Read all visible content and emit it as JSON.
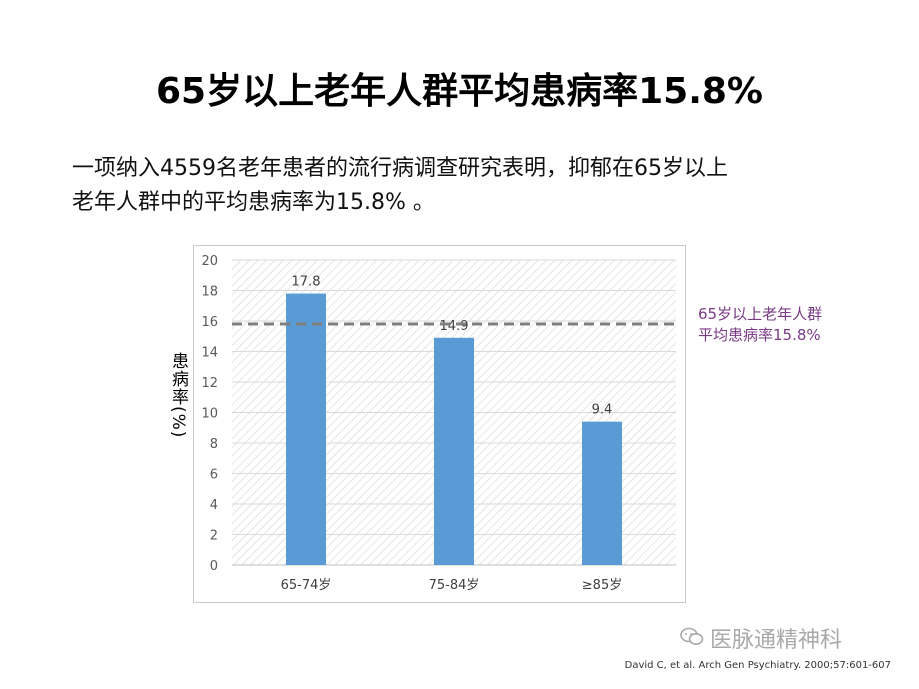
{
  "slide": {
    "title": "65岁以上老年人群平均患病率15.8%",
    "body_line1": "一项纳入4559名老年患者的流行病调查研究表明，抑郁在65岁以上",
    "body_line2": "老年人群中的平均患病率为15.8% 。",
    "avg_note_line1": "65岁以上老年人群",
    "avg_note_line2": "平均患病率15.8%",
    "watermark": "医脉通精神科",
    "citation": "David C, et al. Arch Gen Psychiatry. 2000;57:601-607"
  },
  "colors": {
    "bar": "#5b9bd5",
    "avg_line": "#7f7f7f",
    "note_text": "#7a3a86",
    "plot_hatch": "#dcdcdc"
  },
  "icons": {
    "watermark": "wechat-logo-icon"
  },
  "chart_data": {
    "type": "bar",
    "title": "",
    "xlabel": "",
    "ylabel": "患病率(%)",
    "categories": [
      "65-74岁",
      "75-84岁",
      "≥85岁"
    ],
    "values": [
      17.8,
      14.9,
      9.4
    ],
    "data_labels": [
      "17.8",
      "14.9",
      "9.4"
    ],
    "ylim": [
      0,
      20
    ],
    "yticks": [
      0,
      2,
      4,
      6,
      8,
      10,
      12,
      14,
      16,
      18,
      20
    ],
    "ytick_labels": [
      "0",
      "2",
      "4",
      "6",
      "8",
      "10",
      "12",
      "14",
      "16",
      "18",
      "20"
    ],
    "reference_line": {
      "value": 15.8,
      "style": "dashed"
    },
    "grid": true,
    "legend": "none"
  }
}
